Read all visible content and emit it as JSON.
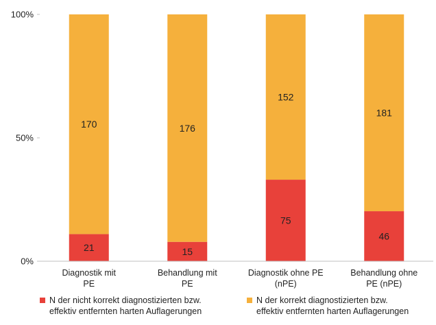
{
  "chart_data": {
    "type": "bar",
    "stacked": "percent",
    "categories": [
      "Diagnostik mit\nPE",
      "Behandlung mit\nPE",
      "Diagnostik ohne PE\n(nPE)",
      "Behandlung ohne\nPE (nPE)"
    ],
    "series": [
      {
        "name": "N der nicht korrekt diagnostizierten bzw.\neffektiv entfernten harten Auflagerungen",
        "values": [
          21,
          15,
          75,
          46
        ],
        "color": "#e8413a"
      },
      {
        "name": "N der korrekt diagnostizierten bzw.\neffektiv entfernten harten Auflagerungen",
        "values": [
          170,
          176,
          152,
          181
        ],
        "color": "#f5b03c"
      }
    ],
    "yticks": [
      "0%",
      "50%",
      "100%"
    ],
    "ylim": [
      0,
      100
    ],
    "grid": false,
    "legend_position": "bottom"
  }
}
